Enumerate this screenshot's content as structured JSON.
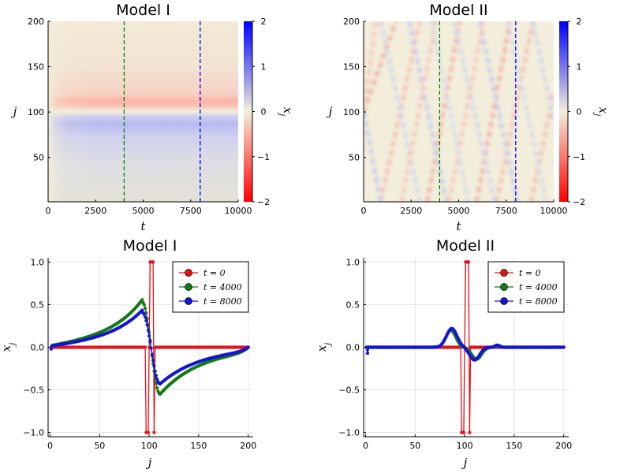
{
  "chart_data": [
    {
      "type": "heatmap",
      "title": "Model I",
      "xlabel": "t",
      "ylabel": "j",
      "xlim": [
        0,
        10000
      ],
      "ylim": [
        1,
        200
      ],
      "x_ticks": [
        "0",
        "2500",
        "5000",
        "7500",
        "10000"
      ],
      "y_ticks": [
        "50",
        "100",
        "150",
        "200"
      ],
      "colorbar": {
        "label": "x",
        "label_sub": "j",
        "range": [
          -2,
          2
        ],
        "ticks": [
          "−2",
          "−1",
          "0",
          "1",
          "2"
        ],
        "low_color": "#ff0000",
        "mid_color": "#f2eedb",
        "high_color": "#0000ff"
      },
      "vlines": [
        {
          "t": 4000,
          "color": "#008000"
        },
        {
          "t": 8000,
          "color": "#0000ff"
        }
      ],
      "pattern": "static-dipole"
    },
    {
      "type": "heatmap",
      "title": "Model II",
      "xlabel": "t",
      "ylabel": "j",
      "xlim": [
        0,
        10000
      ],
      "ylim": [
        1,
        200
      ],
      "x_ticks": [
        "0",
        "2500",
        "5000",
        "7500",
        "10000"
      ],
      "y_ticks": [
        "50",
        "100",
        "150",
        "200"
      ],
      "colorbar": {
        "label": "x",
        "label_sub": "j",
        "range": [
          -2,
          2
        ],
        "ticks": [
          "−2",
          "−1",
          "0",
          "1",
          "2"
        ],
        "low_color": "#ff0000",
        "mid_color": "#f2eedb",
        "high_color": "#0000ff"
      },
      "vlines": [
        {
          "t": 4000,
          "color": "#008000"
        },
        {
          "t": 8000,
          "color": "#0000ff"
        }
      ],
      "pattern": "reflecting-waves"
    },
    {
      "type": "line",
      "title": "Model I",
      "xlabel": "j",
      "ylabel": "x",
      "ylabel_sub": "j",
      "xlim": [
        -2,
        205
      ],
      "ylim": [
        -1.05,
        1.05
      ],
      "x_ticks": [
        "0",
        "50",
        "100",
        "150",
        "200"
      ],
      "y_ticks": [
        "−1.0",
        "−0.5",
        "0.0",
        "0.5",
        "1.0"
      ],
      "model": 1,
      "series": [
        {
          "name": "t = 0",
          "color": "#e3151b"
        },
        {
          "name": "t = 4000",
          "color": "#127a12"
        },
        {
          "name": "t = 8000",
          "color": "#1414d6"
        }
      ]
    },
    {
      "type": "line",
      "title": "Model II",
      "xlabel": "j",
      "ylabel": "x",
      "ylabel_sub": "j",
      "xlim": [
        -2,
        205
      ],
      "ylim": [
        -1.05,
        1.05
      ],
      "x_ticks": [
        "0",
        "50",
        "100",
        "150",
        "200"
      ],
      "y_ticks": [
        "−1.0",
        "−0.5",
        "0.0",
        "0.5",
        "1.0"
      ],
      "model": 2,
      "series": [
        {
          "name": "t = 0",
          "color": "#e3151b"
        },
        {
          "name": "t = 4000",
          "color": "#127a12"
        },
        {
          "name": "t = 8000",
          "color": "#1414d6"
        }
      ]
    }
  ]
}
